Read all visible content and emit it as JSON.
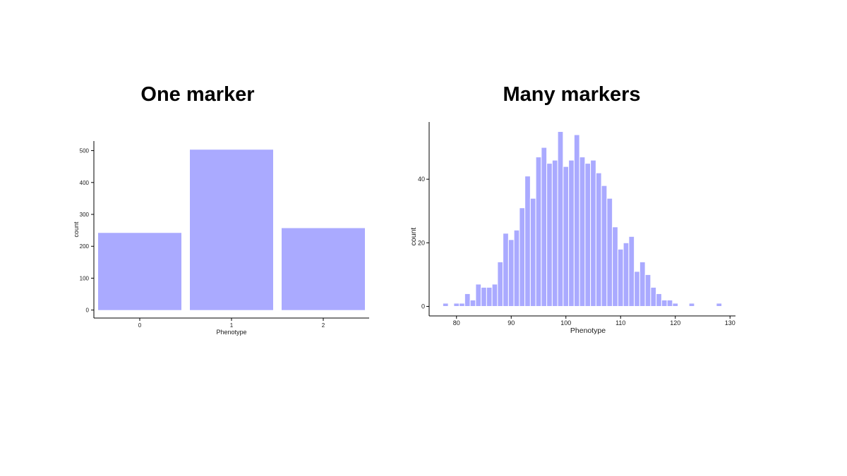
{
  "slide": {
    "left_title": "One marker",
    "right_title": "Many markers"
  },
  "colors": {
    "bar_fill": "#aaaaff",
    "axis": "#000000",
    "background": "#ffffff"
  },
  "chart_data": [
    {
      "type": "bar",
      "title": "One marker",
      "categories": [
        "0",
        "1",
        "2"
      ],
      "values": [
        242,
        503,
        257
      ],
      "xlabel": "Phenotype",
      "ylabel": "count",
      "ylim": [
        -25,
        530
      ],
      "yticks": [
        0,
        100,
        200,
        300,
        400,
        500
      ],
      "grid": false,
      "legend": "none"
    },
    {
      "type": "bar",
      "title": "Many markers",
      "x": [
        78,
        80,
        81,
        82,
        83,
        84,
        85,
        86,
        87,
        88,
        89,
        90,
        91,
        92,
        93,
        94,
        95,
        96,
        97,
        98,
        99,
        100,
        101,
        102,
        103,
        104,
        105,
        106,
        107,
        108,
        109,
        110,
        111,
        112,
        113,
        114,
        115,
        116,
        117,
        118,
        119,
        120,
        123,
        128
      ],
      "values": [
        1,
        1,
        1,
        4,
        2,
        7,
        6,
        6,
        7,
        14,
        23,
        21,
        24,
        31,
        41,
        34,
        47,
        50,
        45,
        46,
        55,
        44,
        46,
        54,
        47,
        45,
        46,
        42,
        38,
        34,
        25,
        18,
        20,
        22,
        11,
        14,
        10,
        6,
        4,
        2,
        2,
        1,
        1,
        1
      ],
      "bin_width": 1,
      "xlabel": "Phenotype",
      "ylabel": "count",
      "xlim": [
        75,
        131
      ],
      "ylim": [
        -3,
        58
      ],
      "xticks": [
        80,
        90,
        100,
        110,
        120,
        130
      ],
      "yticks": [
        0,
        20,
        40
      ],
      "grid": false,
      "legend": "none"
    }
  ]
}
